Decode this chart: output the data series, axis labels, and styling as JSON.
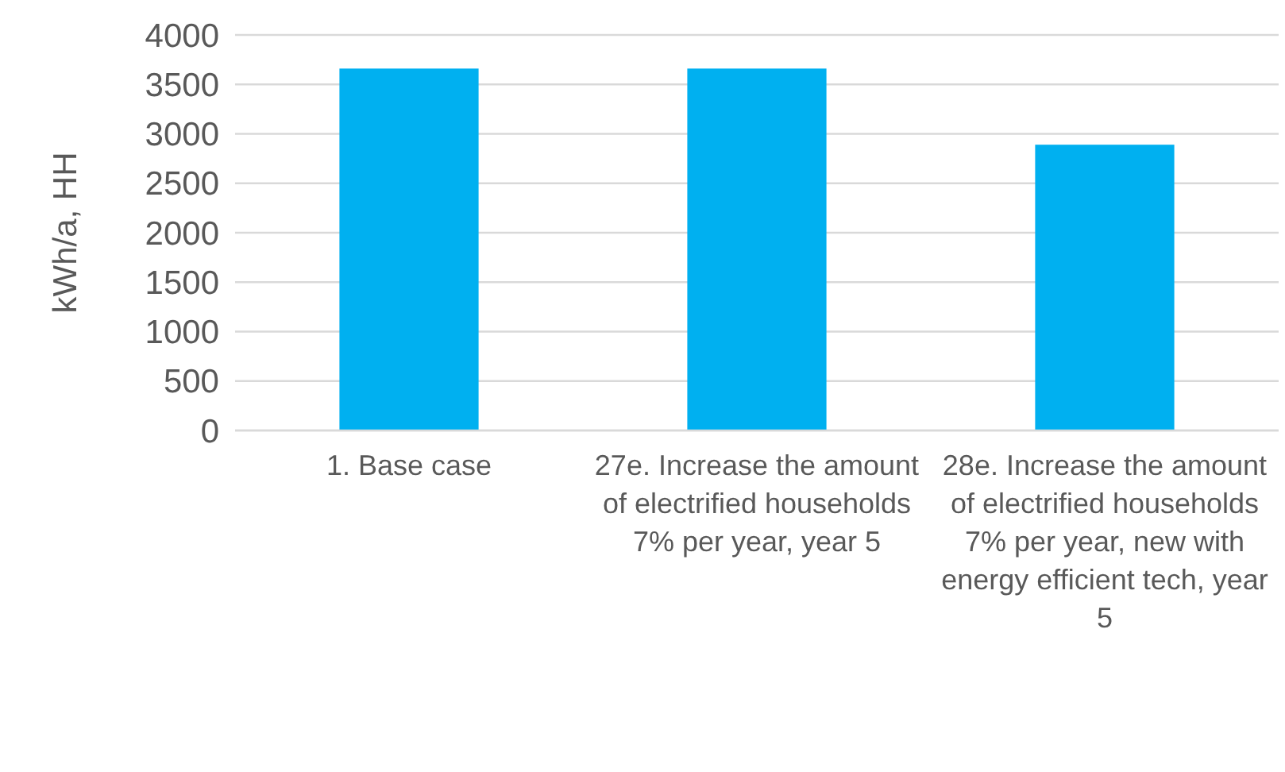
{
  "chart_data": {
    "type": "bar",
    "ylabel": "kWh/a, HH",
    "categories": [
      "1. Base case",
      "27e. Increase the amount of electrified households 7% per year, year 5",
      "28e. Increase the amount of electrified households 7% per year, new with energy efficient tech, year 5"
    ],
    "values": [
      3660,
      3660,
      2890
    ],
    "color": "#00b0f0",
    "ylim": [
      0,
      4000
    ],
    "yticks": [
      0,
      500,
      1000,
      1500,
      2000,
      2500,
      3000,
      3500,
      4000
    ],
    "grid": "y"
  }
}
